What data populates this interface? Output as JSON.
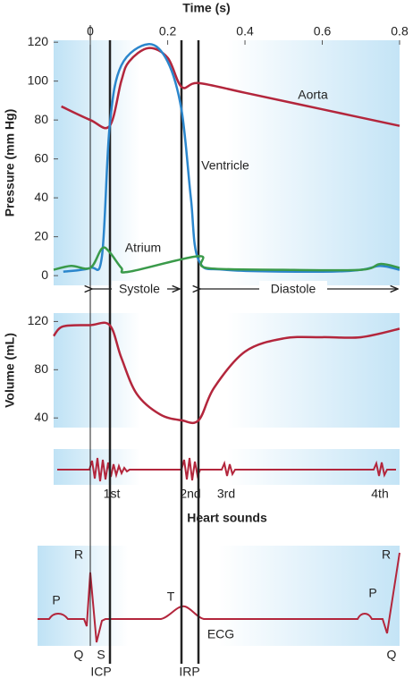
{
  "chart_data": [
    {
      "type": "line",
      "x_label": "Time (s)",
      "y_label": "Pressure (mm Hg)",
      "xlim": [
        -0.095,
        0.8
      ],
      "xticks": [
        0,
        0.2,
        0.4,
        0.6,
        0.8
      ],
      "ylim": [
        -5,
        121
      ],
      "yticks": [
        0,
        20,
        40,
        60,
        80,
        100,
        120
      ],
      "series": [
        {
          "name": "Aorta",
          "color": "#b3263c",
          "x": [
            -0.075,
            0,
            0.05,
            0.08,
            0.1,
            0.15,
            0.2,
            0.236,
            0.28,
            0.4,
            0.6,
            0.8
          ],
          "values": [
            87,
            80,
            77,
            100,
            110,
            117,
            112,
            97,
            99,
            94,
            85.5,
            77
          ]
        },
        {
          "name": "Ventricle",
          "color": "#2b86cc",
          "x": [
            -0.07,
            0,
            0.03,
            0.05,
            0.08,
            0.15,
            0.2,
            0.236,
            0.26,
            0.28,
            0.35,
            0.6,
            0.7,
            0.75,
            0.8
          ],
          "values": [
            2,
            4,
            10,
            77,
            108,
            119,
            110,
            85,
            40,
            8,
            3,
            2,
            3,
            5,
            3
          ]
        },
        {
          "name": "Atrium",
          "color": "#3a9a4a",
          "x": [
            -0.095,
            -0.05,
            0,
            0.03,
            0.05,
            0.08,
            0.1,
            0.28,
            0.3,
            0.5,
            0.7,
            0.75,
            0.8
          ],
          "values": [
            3,
            5,
            4,
            14,
            12,
            4,
            2,
            10,
            4,
            3,
            3,
            6,
            4
          ]
        }
      ],
      "phases": [
        "Systole",
        "Diastole"
      ]
    },
    {
      "type": "line",
      "y_label": "Volume (mL)",
      "xlim": [
        -0.095,
        0.8
      ],
      "ylim": [
        32,
        127
      ],
      "yticks": [
        40,
        80,
        120
      ],
      "series": [
        {
          "color": "#b3263c",
          "x": [
            -0.095,
            -0.07,
            0,
            0.05,
            0.08,
            0.12,
            0.18,
            0.236,
            0.28,
            0.32,
            0.4,
            0.5,
            0.6,
            0.7,
            0.8
          ],
          "values": [
            108,
            116,
            117,
            117,
            90,
            60,
            43,
            38,
            38,
            65,
            95,
            106,
            107,
            107,
            114
          ]
        }
      ]
    }
  ],
  "heart_sounds": {
    "title": "Heart sounds",
    "labels": [
      "1st",
      "2nd",
      "3rd",
      "4th"
    ]
  },
  "ecg": {
    "title": "ECG",
    "waves": [
      "P",
      "Q",
      "R",
      "S",
      "T",
      "P",
      "Q",
      "R"
    ],
    "intervals": [
      "ICP",
      "IRP"
    ]
  }
}
